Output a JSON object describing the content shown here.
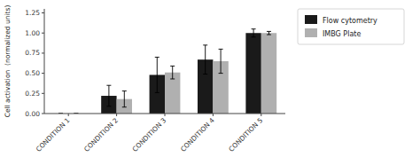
{
  "chart_data": {
    "type": "bar",
    "categories": [
      "CONDITION 1",
      "CONDITION 2",
      "CONDITION 3",
      "CONDITION 4",
      "CONDITION 5"
    ],
    "series": [
      {
        "name": "Flow cytometry",
        "color": "#1a1a1a",
        "values": [
          0.0,
          0.22,
          0.48,
          0.67,
          1.0
        ],
        "errors": [
          0.0,
          0.13,
          0.22,
          0.18,
          0.05
        ]
      },
      {
        "name": "IMBG Plate",
        "color": "#b0b0b0",
        "values": [
          0.0,
          0.18,
          0.51,
          0.65,
          1.0
        ],
        "errors": [
          0.0,
          0.1,
          0.08,
          0.15,
          0.02
        ]
      }
    ],
    "y_label": "Cell activation  (normalized units)",
    "ylim": [
      0,
      1.3
    ],
    "yticks": [
      {
        "value": 0.0,
        "label": "0.00"
      },
      {
        "value": 0.25,
        "label": "0.25"
      },
      {
        "value": 0.5,
        "label": "0.50"
      },
      {
        "value": 0.75,
        "label": "0.75"
      },
      {
        "value": 1.0,
        "label": "1.00"
      },
      {
        "value": 1.25,
        "label": "1.25"
      }
    ],
    "grid": false,
    "legend": "right"
  }
}
